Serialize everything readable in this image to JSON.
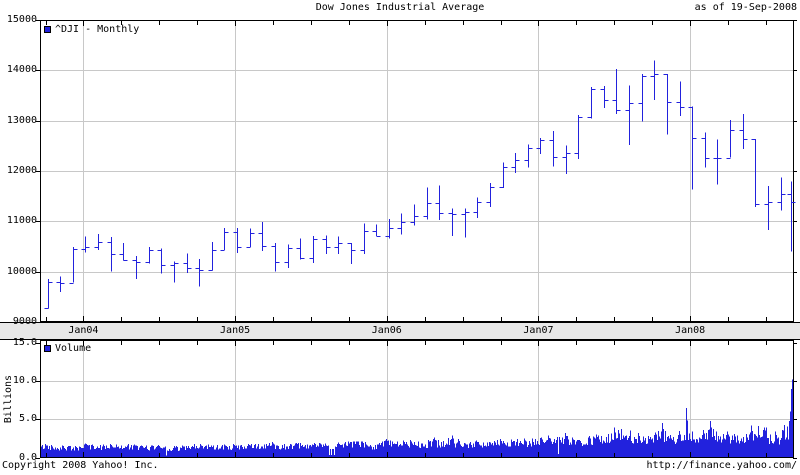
{
  "header": {
    "title": "Dow Jones Industrial Average",
    "as_of": "as of 19-Sep-2008"
  },
  "price_panel": {
    "legend": "^DJI - Monthly",
    "y_tick_labels": [
      "15000",
      "14000",
      "13000",
      "12000",
      "11000",
      "10000",
      "9000"
    ],
    "y_range": [
      9000,
      15000
    ]
  },
  "x_axis": {
    "labels": [
      "Jan04",
      "Jan05",
      "Jan06",
      "Jan07",
      "Jan08"
    ],
    "label_month_indices": [
      3,
      15,
      27,
      39,
      51
    ]
  },
  "volume_panel": {
    "legend": "Volume",
    "axis_label": "Billions",
    "y_tick_labels": [
      "15.0",
      "10.0",
      "5.0",
      "0.0"
    ],
    "y_tick_values": [
      15,
      10,
      5,
      0
    ],
    "y_range": [
      0,
      15
    ]
  },
  "footer": {
    "copyright": "Copyright 2008 Yahoo! Inc.",
    "url": "http://finance.yahoo.com/"
  },
  "colors": {
    "series_blue": "#2222dd",
    "grid_gray": "#c8c8c8",
    "band_bg": "#e8e8e8",
    "border_black": "#000000",
    "background": "#ffffff"
  },
  "chart_data": [
    {
      "type": "ohlc-bar",
      "title": "^DJI - Monthly",
      "ylim": [
        9000,
        15000
      ],
      "y_gridlines": [
        14000,
        13000,
        12000,
        11000,
        10000
      ],
      "months": [
        "Oct03",
        "Nov03",
        "Dec03",
        "Jan04",
        "Feb04",
        "Mar04",
        "Apr04",
        "May04",
        "Jun04",
        "Jul04",
        "Aug04",
        "Sep04",
        "Oct04",
        "Nov04",
        "Dec04",
        "Jan05",
        "Feb05",
        "Mar05",
        "Apr05",
        "May05",
        "Jun05",
        "Jul05",
        "Aug05",
        "Sep05",
        "Oct05",
        "Nov05",
        "Dec05",
        "Jan06",
        "Feb06",
        "Mar06",
        "Apr06",
        "May06",
        "Jun06",
        "Jul06",
        "Aug06",
        "Sep06",
        "Oct06",
        "Nov06",
        "Dec06",
        "Jan07",
        "Feb07",
        "Mar07",
        "Apr07",
        "May07",
        "Jun07",
        "Jul07",
        "Aug07",
        "Sep07",
        "Oct07",
        "Nov07",
        "Dec07",
        "Jan08",
        "Feb08",
        "Mar08",
        "Apr08",
        "May08",
        "Jun08",
        "Jul08",
        "Aug08",
        "Sep08"
      ],
      "ohlc_open_high_low_close": [
        [
          9275,
          9850,
          9265,
          9801
        ],
        [
          9801,
          9903,
          9600,
          9782
        ],
        [
          9782,
          10494,
          9782,
          10454
        ],
        [
          10454,
          10702,
          10384,
          10488
        ],
        [
          10488,
          10753,
          10434,
          10584
        ],
        [
          10584,
          10689,
          10007,
          10358
        ],
        [
          10358,
          10571,
          10219,
          10226
        ],
        [
          10226,
          10310,
          9852,
          10188
        ],
        [
          10188,
          10488,
          10164,
          10435
        ],
        [
          10435,
          10462,
          9961,
          10140
        ],
        [
          10140,
          10200,
          9783,
          10174
        ],
        [
          10174,
          10363,
          9977,
          10080
        ],
        [
          10080,
          10255,
          9708,
          10027
        ],
        [
          10027,
          10590,
          10027,
          10428
        ],
        [
          10428,
          10868,
          10428,
          10783
        ],
        [
          10783,
          10868,
          10368,
          10490
        ],
        [
          10490,
          10854,
          10490,
          10766
        ],
        [
          10766,
          10985,
          10413,
          10504
        ],
        [
          10504,
          10571,
          10000,
          10193
        ],
        [
          10193,
          10542,
          10075,
          10467
        ],
        [
          10467,
          10656,
          10240,
          10275
        ],
        [
          10275,
          10705,
          10175,
          10641
        ],
        [
          10641,
          10719,
          10350,
          10482
        ],
        [
          10482,
          10701,
          10350,
          10569
        ],
        [
          10569,
          10569,
          10156,
          10440
        ],
        [
          10440,
          10960,
          10347,
          10806
        ],
        [
          10806,
          10940,
          10709,
          10718
        ],
        [
          10718,
          11047,
          10661,
          10865
        ],
        [
          10865,
          11159,
          10737,
          10993
        ],
        [
          10993,
          11334,
          10913,
          11109
        ],
        [
          11109,
          11670,
          11039,
          11367
        ],
        [
          11367,
          11709,
          11030,
          11168
        ],
        [
          11168,
          11257,
          10706,
          11150
        ],
        [
          11150,
          11257,
          10683,
          11186
        ],
        [
          11186,
          11477,
          11064,
          11381
        ],
        [
          11381,
          11760,
          11283,
          11679
        ],
        [
          11679,
          12167,
          11662,
          12080
        ],
        [
          12080,
          12361,
          11965,
          12222
        ],
        [
          12222,
          12530,
          12072,
          12463
        ],
        [
          12463,
          12657,
          12337,
          12622
        ],
        [
          12622,
          12796,
          12089,
          12269
        ],
        [
          12269,
          12511,
          11939,
          12354
        ],
        [
          12354,
          13114,
          12243,
          13063
        ],
        [
          13063,
          13673,
          13041,
          13628
        ],
        [
          13628,
          13692,
          13251,
          13409
        ],
        [
          13409,
          14022,
          13134,
          13212
        ],
        [
          13212,
          13696,
          12518,
          13358
        ],
        [
          13358,
          13925,
          12979,
          13896
        ],
        [
          13896,
          14198,
          13407,
          13930
        ],
        [
          13930,
          13930,
          12724,
          13372
        ],
        [
          13372,
          13780,
          13092,
          13265
        ],
        [
          13265,
          13280,
          11634,
          12650
        ],
        [
          12650,
          12767,
          12069,
          12266
        ],
        [
          12266,
          12622,
          11732,
          12263
        ],
        [
          12263,
          13010,
          12266,
          12820
        ],
        [
          12820,
          13136,
          12442,
          12638
        ],
        [
          12638,
          12638,
          11288,
          11350
        ],
        [
          11350,
          11698,
          10828,
          11378
        ],
        [
          11378,
          11867,
          11212,
          11544
        ],
        [
          11544,
          11790,
          10404,
          11388
        ]
      ]
    },
    {
      "type": "bar",
      "title": "Volume (daily, billions of shares)",
      "ylim": [
        0,
        15
      ],
      "y_gridlines": [
        10,
        5
      ],
      "months": [
        "Oct03",
        "Nov03",
        "Dec03",
        "Jan04",
        "Feb04",
        "Mar04",
        "Apr04",
        "May04",
        "Jun04",
        "Jul04",
        "Aug04",
        "Sep04",
        "Oct04",
        "Nov04",
        "Dec04",
        "Jan05",
        "Feb05",
        "Mar05",
        "Apr05",
        "May05",
        "Jun05",
        "Jul05",
        "Aug05",
        "Sep05",
        "Oct05",
        "Nov05",
        "Dec05",
        "Jan06",
        "Feb06",
        "Mar06",
        "Apr06",
        "May06",
        "Jun06",
        "Jul06",
        "Aug06",
        "Sep06",
        "Oct06",
        "Nov06",
        "Dec06",
        "Jan07",
        "Feb07",
        "Mar07",
        "Apr07",
        "May07",
        "Jun07",
        "Jul07",
        "Aug07",
        "Sep07",
        "Oct07",
        "Nov07",
        "Dec07",
        "Jan08",
        "Feb08",
        "Mar08",
        "Apr08",
        "May08",
        "Jun08",
        "Jul08",
        "Aug08",
        "Sep08"
      ],
      "monthly_avg": [
        1.45,
        1.35,
        1.3,
        1.5,
        1.45,
        1.5,
        1.5,
        1.4,
        1.35,
        1.4,
        1.25,
        1.3,
        1.45,
        1.5,
        1.45,
        1.45,
        1.5,
        1.55,
        1.65,
        1.55,
        1.6,
        1.6,
        1.55,
        1.65,
        1.75,
        1.75,
        1.6,
        1.9,
        1.85,
        1.9,
        1.85,
        2.0,
        2.1,
        1.9,
        1.8,
        1.85,
        1.9,
        1.95,
        1.9,
        2.1,
        2.2,
        2.4,
        2.1,
        2.2,
        2.4,
        2.7,
        3.1,
        2.4,
        2.5,
        3.0,
        2.5,
        3.2,
        2.7,
        3.1,
        2.6,
        2.4,
        2.8,
        3.4,
        2.5,
        3.6
      ],
      "monthly_peak": [
        1.75,
        1.6,
        1.6,
        1.8,
        1.7,
        1.8,
        1.8,
        1.7,
        1.6,
        1.65,
        1.5,
        1.55,
        1.75,
        1.8,
        1.7,
        1.7,
        1.75,
        1.8,
        2.0,
        1.8,
        1.9,
        1.9,
        1.85,
        1.95,
        2.1,
        2.1,
        1.9,
        2.4,
        2.2,
        2.3,
        2.3,
        2.6,
        2.9,
        2.4,
        2.2,
        2.3,
        2.4,
        2.4,
        2.5,
        2.6,
        2.9,
        3.2,
        2.6,
        2.8,
        3.0,
        3.9,
        6.2,
        3.2,
        3.3,
        4.5,
        3.5,
        6.5,
        3.6,
        4.8,
        3.4,
        3.1,
        4.2,
        5.8,
        3.4,
        10.2
      ],
      "final_day_spikes": [
        4.8,
        6.0,
        9.0,
        10.2
      ]
    }
  ]
}
